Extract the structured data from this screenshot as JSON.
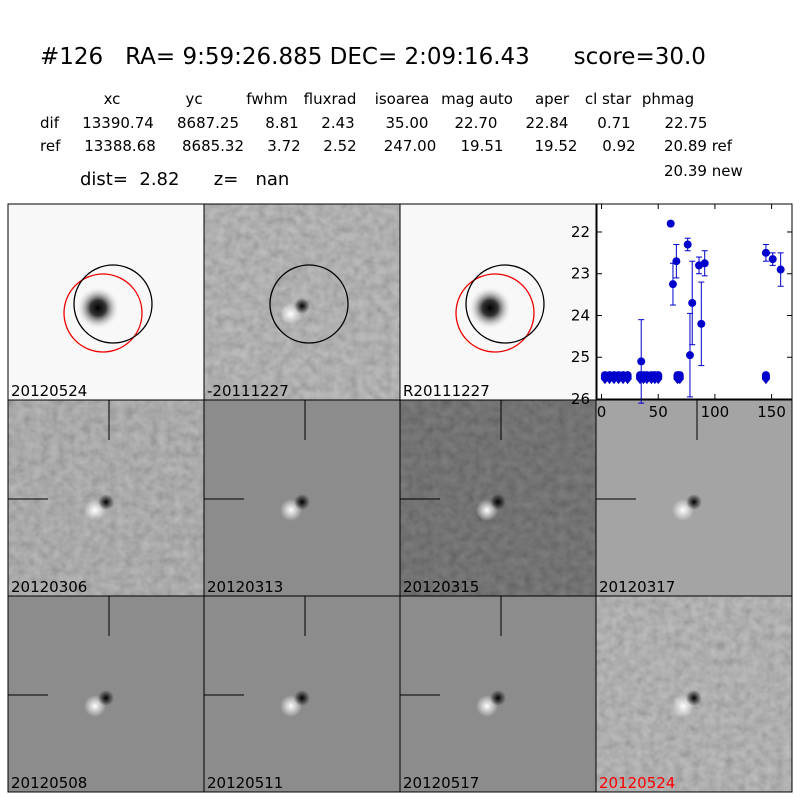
{
  "header": {
    "title": "#126   RA= 9:59:26.885 DEC= 2:09:16.43      score=30.0",
    "dist": "dist=  2.82      z=   nan"
  },
  "table": {
    "columns": [
      "xc",
      "yc",
      "fwhm",
      "fluxrad",
      "isoarea",
      "mag auto",
      "aper",
      "cl star",
      "phmag"
    ],
    "rows": [
      [
        "dif",
        "13390.74",
        "8687.25",
        "8.81",
        "2.43",
        "35.00",
        "22.70",
        "22.84",
        "0.71",
        "22.75"
      ],
      [
        "ref",
        "13388.68",
        "8685.32",
        "3.72",
        "2.52",
        "247.00",
        "19.51",
        "19.52",
        "0.92",
        "20.89 ref"
      ]
    ],
    "extra": "20.39 new"
  },
  "panels": [
    {
      "label": "20120524",
      "color": "#000000"
    },
    {
      "label": "-20111227",
      "color": "#000000"
    },
    {
      "label": "R20111227",
      "color": "#000000"
    },
    {
      "label": "20120306",
      "color": "#000000"
    },
    {
      "label": "20120313",
      "color": "#000000"
    },
    {
      "label": "20120315",
      "color": "#000000"
    },
    {
      "label": "20120317",
      "color": "#000000"
    },
    {
      "label": "20120508",
      "color": "#000000"
    },
    {
      "label": "20120511",
      "color": "#000000"
    },
    {
      "label": "20120517",
      "color": "#000000"
    },
    {
      "label": "20120524",
      "color": "#ff0000"
    }
  ],
  "chart_data": {
    "type": "scatter",
    "xlim": [
      -4,
      168
    ],
    "ylim": [
      26,
      21.33
    ],
    "xticks": [
      0,
      50,
      100,
      150
    ],
    "yticks": [
      22,
      23,
      24,
      25,
      26
    ],
    "series": [
      {
        "color": "#0000cc",
        "marker": "o",
        "x": [
          35,
          61,
          63,
          66,
          76,
          78,
          80,
          86,
          88,
          91,
          145,
          151,
          158
        ],
        "values": [
          25.1,
          21.8,
          23.25,
          22.7,
          22.3,
          24.95,
          23.7,
          22.8,
          24.2,
          22.75,
          22.5,
          22.65,
          22.9
        ],
        "errors": [
          1.0,
          0.05,
          0.5,
          0.4,
          0.15,
          1.0,
          1.0,
          0.2,
          1.0,
          0.3,
          0.2,
          0.15,
          0.4
        ]
      },
      {
        "color": "#0000cc",
        "marker": "v",
        "x": [
          3,
          7,
          11,
          15,
          19,
          23,
          34,
          37,
          40,
          44,
          47,
          50,
          67,
          69,
          145
        ],
        "values": [
          25.5,
          25.5,
          25.5,
          25.5,
          25.5,
          25.5,
          25.5,
          25.5,
          25.5,
          25.5,
          25.5,
          25.5,
          25.5,
          25.5,
          25.5
        ]
      }
    ]
  }
}
